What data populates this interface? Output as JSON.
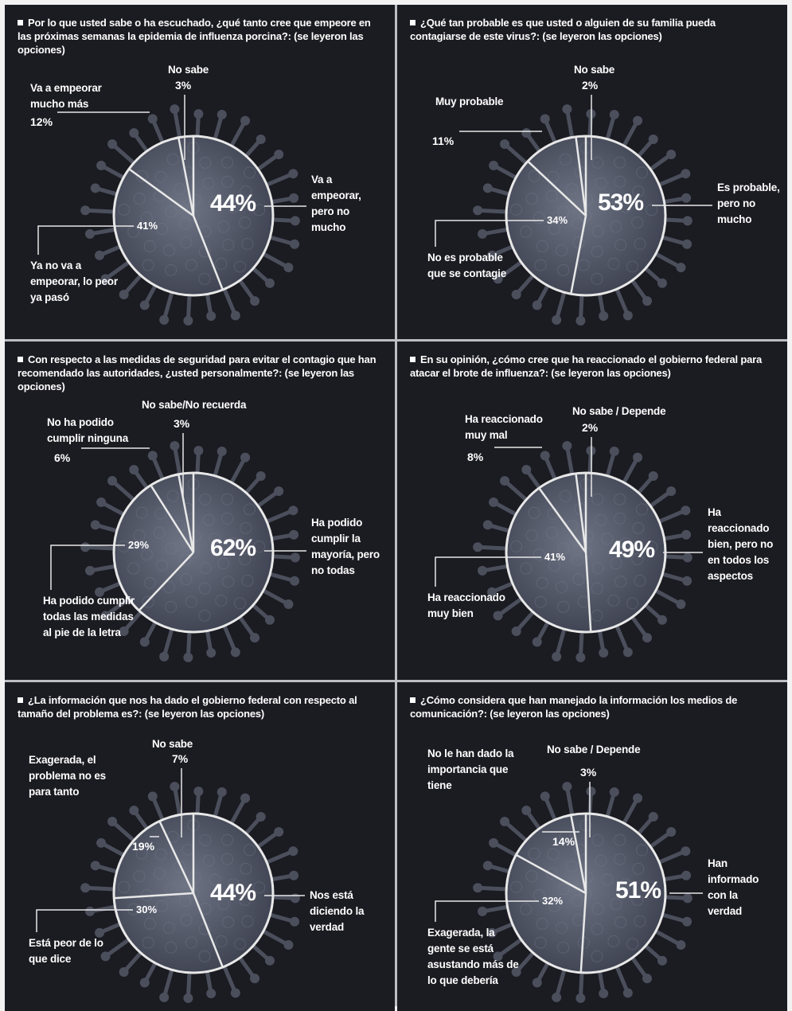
{
  "colors": {
    "background": "#1b1b22",
    "virus_fill": "#5d6373",
    "spike": "#4b4f5c",
    "line": "#e8e8e8"
  },
  "chart_data": [
    {
      "type": "pie",
      "title": "Por lo que usted sabe o ha escuchado, ¿qué tanto cree que empeore en las próximas semanas la epidemia de influenza porcina?: (se leyeron las opciones)",
      "slices": [
        {
          "label": "Va a empeorar, pero no mucho",
          "value": 44,
          "text": "44%"
        },
        {
          "label": "Ya no va a empeorar, lo peor ya pasó",
          "value": 41,
          "text": "41%"
        },
        {
          "label": "Va a empeorar mucho más",
          "value": 12,
          "text": "12%"
        },
        {
          "label": "No sabe",
          "value": 3,
          "text": "3%"
        }
      ]
    },
    {
      "type": "pie",
      "title": "¿Qué tan probable es que usted o alguien de su familia pueda contagiarse de este virus?: (se leyeron las opciones)",
      "slices": [
        {
          "label": "Es probable, pero no mucho",
          "value": 53,
          "text": "53%"
        },
        {
          "label": "No es probable que se contagie",
          "value": 34,
          "text": "34%"
        },
        {
          "label": "Muy probable",
          "value": 11,
          "text": "11%"
        },
        {
          "label": "No sabe",
          "value": 2,
          "text": "2%"
        }
      ]
    },
    {
      "type": "pie",
      "title": "Con respecto a las medidas de seguridad para evitar el contagio que han recomendado las autoridades, ¿usted personalmente?: (se leyeron las opciones)",
      "slices": [
        {
          "label": "Ha podido cumplir la mayoría, pero no todas",
          "value": 62,
          "text": "62%"
        },
        {
          "label": "Ha podido cumplir todas las medidas al pie de la letra",
          "value": 29,
          "text": "29%"
        },
        {
          "label": "No ha podido cumplir ninguna",
          "value": 6,
          "text": "6%"
        },
        {
          "label": "No sabe/No recuerda",
          "value": 3,
          "text": "3%"
        }
      ]
    },
    {
      "type": "pie",
      "title": "En su opinión, ¿cómo cree que ha reaccionado el gobierno federal para atacar el brote de influenza?: (se leyeron las opciones)",
      "slices": [
        {
          "label": "Ha reaccionado bien, pero no en todos los aspectos",
          "value": 49,
          "text": "49%"
        },
        {
          "label": "Ha reaccionado muy bien",
          "value": 41,
          "text": "41%"
        },
        {
          "label": "Ha reaccionado muy mal",
          "value": 8,
          "text": "8%"
        },
        {
          "label": "No sabe / Depende",
          "value": 2,
          "text": "2%"
        }
      ]
    },
    {
      "type": "pie",
      "title": "¿La información que nos ha dado el gobierno federal con respecto al tamaño del problema es?: (se leyeron las opciones)",
      "slices": [
        {
          "label": "Nos está diciendo la verdad",
          "value": 44,
          "text": "44%"
        },
        {
          "label": "Está peor de lo que dice",
          "value": 30,
          "text": "30%"
        },
        {
          "label": "Exagerada, el problema no es para tanto",
          "value": 19,
          "text": "19%"
        },
        {
          "label": "No sabe",
          "value": 7,
          "text": "7%"
        }
      ]
    },
    {
      "type": "pie",
      "title": "¿Cómo considera que han manejado la información los medios de comunicación?: (se leyeron las opciones)",
      "slices": [
        {
          "label": "Han informado con la verdad",
          "value": 51,
          "text": "51%"
        },
        {
          "label": "Exagerada, la gente se está asustando más de lo que debería",
          "value": 32,
          "text": "32%"
        },
        {
          "label": "No le han dado la importancia que tiene",
          "value": 14,
          "text": "14%"
        },
        {
          "label": "No sabe / Depende",
          "value": 3,
          "text": "3%"
        }
      ]
    }
  ]
}
